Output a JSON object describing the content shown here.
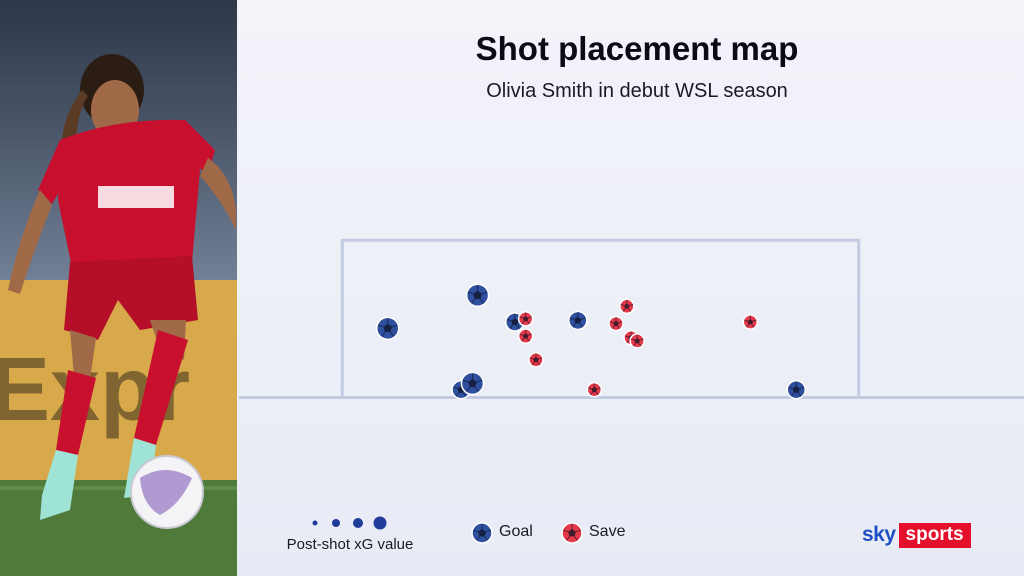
{
  "chart_data": {
    "type": "scatter",
    "title": "Shot placement map",
    "subtitle": "Olivia Smith in debut WSL season",
    "xlabel": "",
    "ylabel": "",
    "legend": {
      "size_label": "Post-shot xG value",
      "entries": [
        {
          "name": "Goal",
          "color": "#2f4f9f"
        },
        {
          "name": "Save",
          "color": "#e5394a"
        }
      ],
      "placement": "bottom"
    },
    "xlim": [
      -0.2,
      1.32
    ],
    "ylim": [
      -0.06,
      1.23
    ],
    "goal_frame": {
      "x0": 0,
      "x1": 1,
      "y0": 0,
      "y1": 1
    },
    "series": [
      {
        "name": "Goal",
        "color": "#2f4f9f",
        "points": [
          {
            "x": 0.088,
            "y": 0.44,
            "size": 3
          },
          {
            "x": 0.262,
            "y": 0.65,
            "size": 3
          },
          {
            "x": 0.334,
            "y": 0.48,
            "size": 2
          },
          {
            "x": 0.456,
            "y": 0.49,
            "size": 2
          },
          {
            "x": 0.23,
            "y": 0.05,
            "size": 2
          },
          {
            "x": 0.252,
            "y": 0.09,
            "size": 3
          },
          {
            "x": 0.879,
            "y": 0.05,
            "size": 2
          }
        ]
      },
      {
        "name": "Save",
        "color": "#e5394a",
        "points": [
          {
            "x": 0.355,
            "y": 0.5,
            "size": 1
          },
          {
            "x": 0.355,
            "y": 0.39,
            "size": 1
          },
          {
            "x": 0.375,
            "y": 0.24,
            "size": 1
          },
          {
            "x": 0.53,
            "y": 0.47,
            "size": 1
          },
          {
            "x": 0.551,
            "y": 0.58,
            "size": 1
          },
          {
            "x": 0.559,
            "y": 0.38,
            "size": 1
          },
          {
            "x": 0.571,
            "y": 0.36,
            "size": 1
          },
          {
            "x": 0.79,
            "y": 0.48,
            "size": 1
          },
          {
            "x": 0.488,
            "y": 0.05,
            "size": 1
          }
        ]
      }
    ],
    "grid": false
  },
  "brand": {
    "sky": "sky",
    "sports": "sports"
  }
}
